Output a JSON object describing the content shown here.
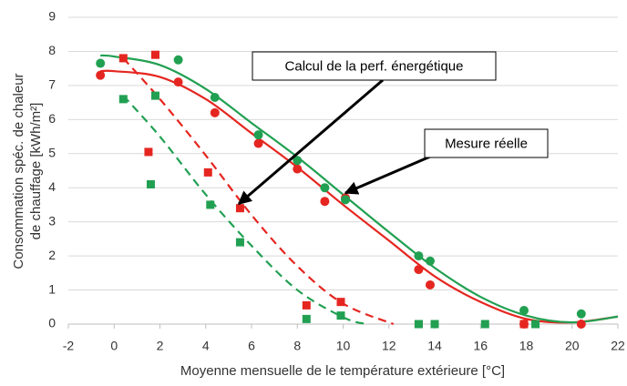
{
  "chart_data": {
    "type": "scatter",
    "xlabel": "Moyenne mensuelle de le température extérieure [°C]",
    "ylabel": [
      "Consommation spéc. de chaleur",
      "de chauffage [kWh/m²]"
    ],
    "xlim": [
      -2,
      22
    ],
    "xticks": [
      -2,
      0,
      2,
      4,
      6,
      8,
      10,
      12,
      14,
      16,
      18,
      20,
      22
    ],
    "ylim": [
      0,
      9
    ],
    "yticks": [
      0,
      1,
      2,
      3,
      4,
      5,
      6,
      7,
      8,
      9
    ],
    "grid": true,
    "series": [
      {
        "color": "#e52620",
        "marker": "circle",
        "x": [
          -0.6,
          2.8,
          4.4,
          6.3,
          8.0,
          9.2,
          10.1,
          13.3,
          13.8,
          17.9,
          20.4
        ],
        "values": [
          7.3,
          7.1,
          6.2,
          5.3,
          4.55,
          3.6,
          3.7,
          1.6,
          1.15,
          0.0,
          0.0
        ]
      },
      {
        "color": "#21a052",
        "marker": "circle",
        "x": [
          -0.6,
          2.8,
          4.4,
          6.3,
          8.0,
          9.2,
          10.1,
          13.3,
          13.8,
          17.9,
          20.4
        ],
        "values": [
          7.65,
          7.75,
          6.65,
          5.55,
          4.8,
          4.0,
          3.65,
          2.0,
          1.85,
          0.4,
          0.3
        ]
      },
      {
        "color": "#e52620",
        "marker": "square",
        "x": [
          0.4,
          1.8,
          1.5,
          4.1,
          5.5,
          8.4,
          9.9,
          13.3,
          17.9
        ],
        "values": [
          7.8,
          7.9,
          5.05,
          4.45,
          3.4,
          0.55,
          0.65,
          0.0,
          0.0
        ]
      },
      {
        "color": "#21a052",
        "marker": "square",
        "x": [
          0.4,
          1.8,
          1.6,
          4.2,
          5.5,
          8.4,
          9.9,
          13.3,
          14.0,
          16.2,
          18.4
        ],
        "values": [
          6.6,
          6.7,
          4.1,
          3.5,
          2.4,
          0.15,
          0.25,
          0.0,
          0.0,
          0.0,
          0.0
        ]
      },
      {
        "color": "#e52620",
        "marker": "line",
        "dashed": false,
        "x": [
          -0.6,
          0,
          2,
          4,
          6,
          8,
          10,
          12,
          14,
          16,
          18,
          20,
          22
        ],
        "values": [
          7.42,
          7.42,
          7.25,
          6.6,
          5.6,
          4.6,
          3.5,
          2.45,
          1.4,
          0.65,
          0.15,
          0.05,
          0.22
        ]
      },
      {
        "color": "#21a052",
        "marker": "line",
        "dashed": false,
        "x": [
          -0.6,
          0,
          2,
          4,
          6,
          8,
          10,
          12,
          14,
          16,
          18,
          20,
          22
        ],
        "values": [
          7.88,
          7.85,
          7.6,
          6.9,
          5.9,
          4.9,
          3.8,
          2.7,
          1.65,
          0.8,
          0.25,
          0.05,
          0.22
        ]
      },
      {
        "color": "#e52620",
        "marker": "line",
        "dashed": true,
        "x": [
          0.4,
          2,
          4,
          6,
          8,
          10,
          12.2
        ],
        "values": [
          7.8,
          6.6,
          4.95,
          3.2,
          1.7,
          0.6,
          0
        ]
      },
      {
        "color": "#21a052",
        "marker": "line",
        "dashed": true,
        "x": [
          0.4,
          2,
          4,
          6,
          8,
          10,
          11
        ],
        "values": [
          6.7,
          5.5,
          3.8,
          2.3,
          1.0,
          0.2,
          0
        ]
      }
    ],
    "annotations": [
      "Calcul de la perf. énergétique",
      "Mesure réelle"
    ]
  }
}
